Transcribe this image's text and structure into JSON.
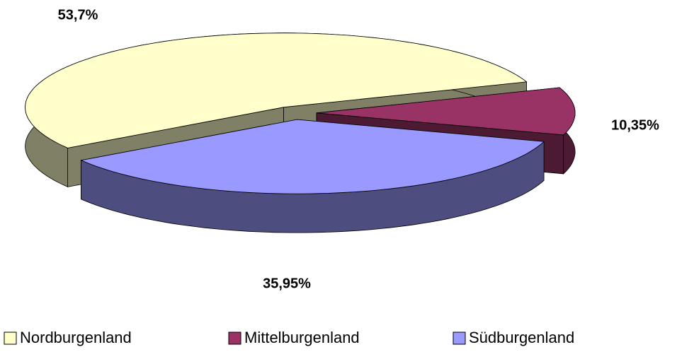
{
  "chart_data": {
    "type": "pie",
    "categories": [
      "Nordburgenland",
      "Mittelburgenland",
      "Südburgenland"
    ],
    "values": [
      53.7,
      10.35,
      35.95
    ],
    "value_labels": [
      "53,7%",
      "10,35%",
      "35,95%"
    ],
    "colors": [
      "#ffffcc",
      "#993366",
      "#9999ff"
    ],
    "legend": "bottom"
  }
}
